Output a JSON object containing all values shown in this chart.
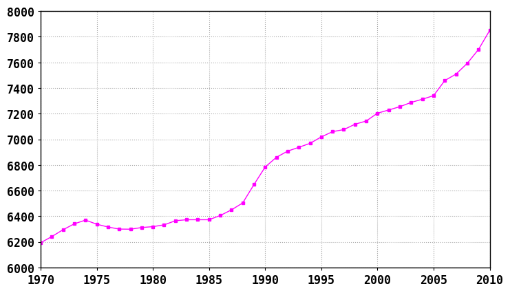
{
  "years": [
    1970,
    1971,
    1972,
    1973,
    1974,
    1975,
    1976,
    1977,
    1978,
    1979,
    1980,
    1981,
    1982,
    1983,
    1984,
    1985,
    1986,
    1987,
    1988,
    1989,
    1990,
    1991,
    1992,
    1993,
    1994,
    1995,
    1996,
    1997,
    1998,
    1999,
    2000,
    2001,
    2002,
    2003,
    2004,
    2005,
    2006,
    2007,
    2008,
    2009,
    2010
  ],
  "population": [
    6193,
    6242,
    6295,
    6341,
    6370,
    6338,
    6316,
    6300,
    6299,
    6312,
    6319,
    6333,
    6365,
    6373,
    6373,
    6373,
    6406,
    6450,
    6504,
    6647,
    6784,
    6860,
    6908,
    6938,
    6969,
    7019,
    7060,
    7076,
    7118,
    7143,
    7204,
    7229,
    7255,
    7288,
    7313,
    7341,
    7459,
    7509,
    7593,
    7701,
    7850
  ],
  "line_color": "#ff00ff",
  "marker": "s",
  "marker_size": 3.5,
  "bg_color": "#ffffff",
  "grid_color": "#aaaaaa",
  "xlim": [
    1970,
    2010
  ],
  "ylim": [
    6000,
    8000
  ],
  "xticks": [
    1970,
    1975,
    1980,
    1985,
    1990,
    1995,
    2000,
    2005,
    2010
  ],
  "yticks": [
    6000,
    6200,
    6400,
    6600,
    6800,
    7000,
    7200,
    7400,
    7600,
    7800,
    8000
  ],
  "tick_fontsize": 12,
  "font_family": "monospace",
  "font_weight": "bold"
}
